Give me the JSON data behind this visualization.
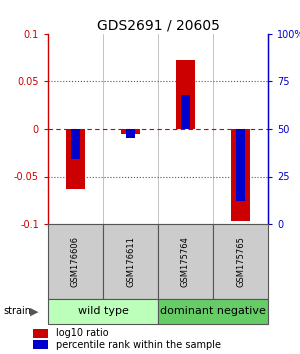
{
  "title": "GDS2691 / 20605",
  "samples": [
    "GSM176606",
    "GSM176611",
    "GSM175764",
    "GSM175765"
  ],
  "log10_ratio": [
    -0.063,
    -0.005,
    0.073,
    -0.097
  ],
  "percentile_rank": [
    0.34,
    0.455,
    0.68,
    0.12
  ],
  "ylim_left": [
    -0.1,
    0.1
  ],
  "ylim_right": [
    0.0,
    1.0
  ],
  "yticks_left": [
    -0.1,
    -0.05,
    0.0,
    0.05,
    0.1
  ],
  "ytick_labels_left": [
    "-0.1",
    "-0.05",
    "0",
    "0.05",
    "0.1"
  ],
  "yticks_right": [
    0.0,
    0.25,
    0.5,
    0.75,
    1.0
  ],
  "ytick_labels_right": [
    "0",
    "25",
    "50",
    "75",
    "100%"
  ],
  "groups": [
    {
      "label": "wild type",
      "indices": [
        0,
        1
      ],
      "color": "#bbffbb"
    },
    {
      "label": "dominant negative",
      "indices": [
        2,
        3
      ],
      "color": "#66cc66"
    }
  ],
  "red_color": "#cc0000",
  "blue_color": "#0000cc",
  "gray_box_color": "#cccccc",
  "gray_box_edge": "#888888",
  "legend_items": [
    "log10 ratio",
    "percentile rank within the sample"
  ],
  "title_fontsize": 10,
  "tick_fontsize": 7,
  "sample_fontsize": 6,
  "group_fontsize": 8,
  "legend_fontsize": 7
}
